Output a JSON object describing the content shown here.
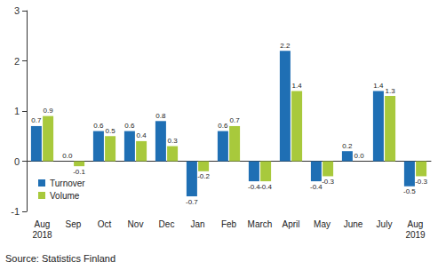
{
  "chart_data": {
    "type": "bar",
    "categories": [
      "Aug\n2018",
      "Sep",
      "Oct",
      "Nov",
      "Dec",
      "Jan",
      "Feb",
      "March",
      "April",
      "May",
      "June",
      "July",
      "Aug\n2019"
    ],
    "series": [
      {
        "name": "Turnover",
        "color": "#1f6fb4",
        "values": [
          0.7,
          0.0,
          0.6,
          0.6,
          0.8,
          -0.7,
          0.6,
          -0.4,
          2.2,
          -0.4,
          0.2,
          1.4,
          -0.5
        ],
        "value_labels": [
          "0.7",
          "0.0",
          "0.6",
          "0.6",
          "0.8",
          "-0.7",
          "0.6",
          "-0.4",
          "2.2",
          "-0.4",
          "0.2",
          "1.4",
          "-0.5"
        ]
      },
      {
        "name": "Volume",
        "color": "#a8c93c",
        "values": [
          0.9,
          -0.1,
          0.5,
          0.4,
          0.3,
          -0.2,
          0.7,
          -0.4,
          1.4,
          -0.3,
          0.0,
          1.3,
          -0.3
        ],
        "value_labels": [
          "0.9",
          "-0.1",
          "0.5",
          "0.4",
          "0.3",
          "-0.2",
          "0.7",
          "-0.4",
          "1.4",
          "-0.3",
          "0.0",
          "1.3",
          "-0.3"
        ]
      }
    ],
    "ylim": [
      -1,
      3
    ],
    "yticks": [
      -1,
      0,
      1,
      2,
      3
    ],
    "grid": false,
    "legend": "lower left",
    "data_labels": true,
    "annotations": [
      "Source: Statistics Finland"
    ]
  }
}
